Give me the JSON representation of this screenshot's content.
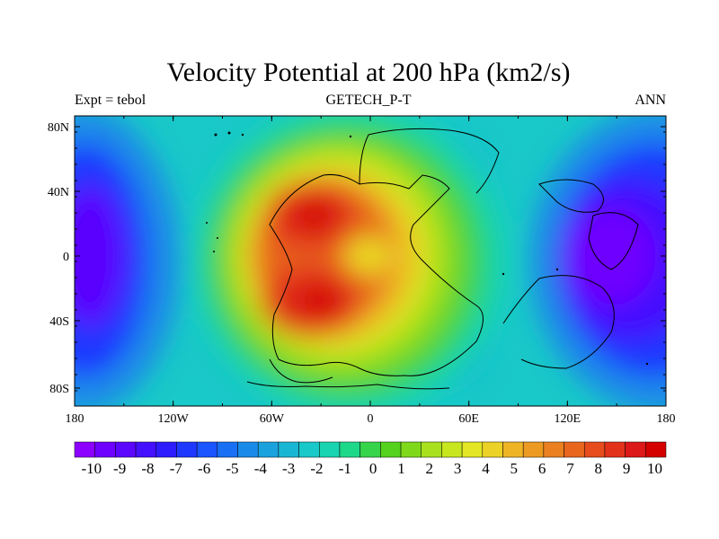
{
  "title": "Velocity Potential at 200 hPa (km2/s)",
  "subtitle_center": "GETECH_P-T",
  "subtitle_left": "Expt = tebol",
  "subtitle_right": "ANN",
  "map": {
    "lat_ticks": [
      "80N",
      "40N",
      "0",
      "40S",
      "80S"
    ],
    "lon_ticks": [
      "180",
      "120W",
      "60W",
      "0",
      "60E",
      "120E",
      "180"
    ]
  },
  "colorbar": {
    "labels": [
      "-10",
      "-9",
      "-8",
      "-7",
      "-6",
      "-5",
      "-4",
      "-3",
      "-2",
      "-1",
      "0",
      "1",
      "2",
      "3",
      "4",
      "5",
      "6",
      "7",
      "8",
      "9",
      "10"
    ],
    "colors": [
      "#8c00ff",
      "#6e00ff",
      "#5a06ff",
      "#4410ff",
      "#2e1cff",
      "#1f38ff",
      "#1a55ff",
      "#1970f5",
      "#1a8ae8",
      "#1aa2dd",
      "#19b6d4",
      "#19c8c8",
      "#19d4b0",
      "#1ed88a",
      "#35d44a",
      "#55d21e",
      "#80d81a",
      "#a8e01e",
      "#c8e61e",
      "#e2e624",
      "#ecd226",
      "#eeb424",
      "#ec9a22",
      "#ea8020",
      "#e8661e",
      "#e64c1c",
      "#e2321a",
      "#dc1818",
      "#d40000"
    ]
  },
  "field_description": "Filled contours, -10 to 10 km2/s; positive center over South America/Africa, negative centers over western Pacific and eastern Pacific"
}
